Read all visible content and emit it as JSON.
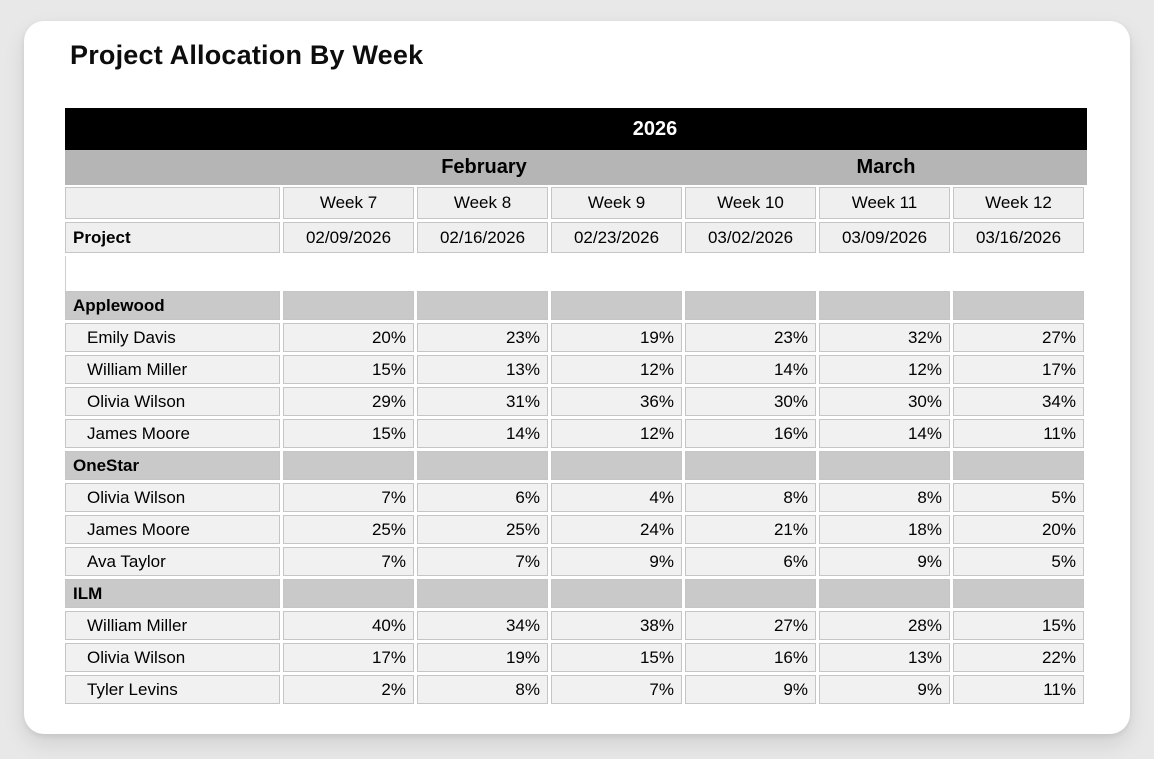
{
  "page": {
    "title": "Project Allocation By Week"
  },
  "table": {
    "year": "2026",
    "months": [
      {
        "label": "February",
        "weeks_spanned": 3
      },
      {
        "label": "March",
        "weeks_spanned": 3
      }
    ],
    "weeks": [
      "Week 7",
      "Week 8",
      "Week 9",
      "Week 10",
      "Week 11",
      "Week 12"
    ],
    "corner_label": "Project",
    "dates": [
      "02/09/2026",
      "02/16/2026",
      "02/23/2026",
      "03/02/2026",
      "03/09/2026",
      "03/16/2026"
    ],
    "groups": [
      {
        "name": "Applewood",
        "members": [
          {
            "name": "Emily Davis",
            "values": [
              "20%",
              "23%",
              "19%",
              "23%",
              "32%",
              "27%"
            ]
          },
          {
            "name": "William Miller",
            "values": [
              "15%",
              "13%",
              "12%",
              "14%",
              "12%",
              "17%"
            ]
          },
          {
            "name": "Olivia Wilson",
            "values": [
              "29%",
              "31%",
              "36%",
              "30%",
              "30%",
              "34%"
            ]
          },
          {
            "name": "James Moore",
            "values": [
              "15%",
              "14%",
              "12%",
              "16%",
              "14%",
              "11%"
            ]
          }
        ]
      },
      {
        "name": "OneStar",
        "members": [
          {
            "name": "Olivia Wilson",
            "values": [
              "7%",
              "6%",
              "4%",
              "8%",
              "8%",
              "5%"
            ]
          },
          {
            "name": "James Moore",
            "values": [
              "25%",
              "25%",
              "24%",
              "21%",
              "18%",
              "20%"
            ]
          },
          {
            "name": "Ava Taylor",
            "values": [
              "7%",
              "7%",
              "9%",
              "6%",
              "9%",
              "5%"
            ]
          }
        ]
      },
      {
        "name": "ILM",
        "members": [
          {
            "name": "William Miller",
            "values": [
              "40%",
              "34%",
              "38%",
              "27%",
              "28%",
              "15%"
            ]
          },
          {
            "name": "Olivia Wilson",
            "values": [
              "17%",
              "19%",
              "15%",
              "16%",
              "13%",
              "22%"
            ]
          },
          {
            "name": "Tyler Levins",
            "values": [
              "2%",
              "8%",
              "7%",
              "9%",
              "9%",
              "11%"
            ]
          }
        ]
      }
    ]
  },
  "colors": {
    "page_bg": "#e8e8e8",
    "card_bg": "#ffffff",
    "year_band_bg": "#000000",
    "year_band_text": "#ffffff",
    "month_band_bg": "#b5b5b5",
    "group_row_bg": "#c9c9c9",
    "header_cell_bg": "#efefef",
    "data_cell_bg": "#f1f1f1",
    "cell_hairline": "#c5c5c5"
  }
}
